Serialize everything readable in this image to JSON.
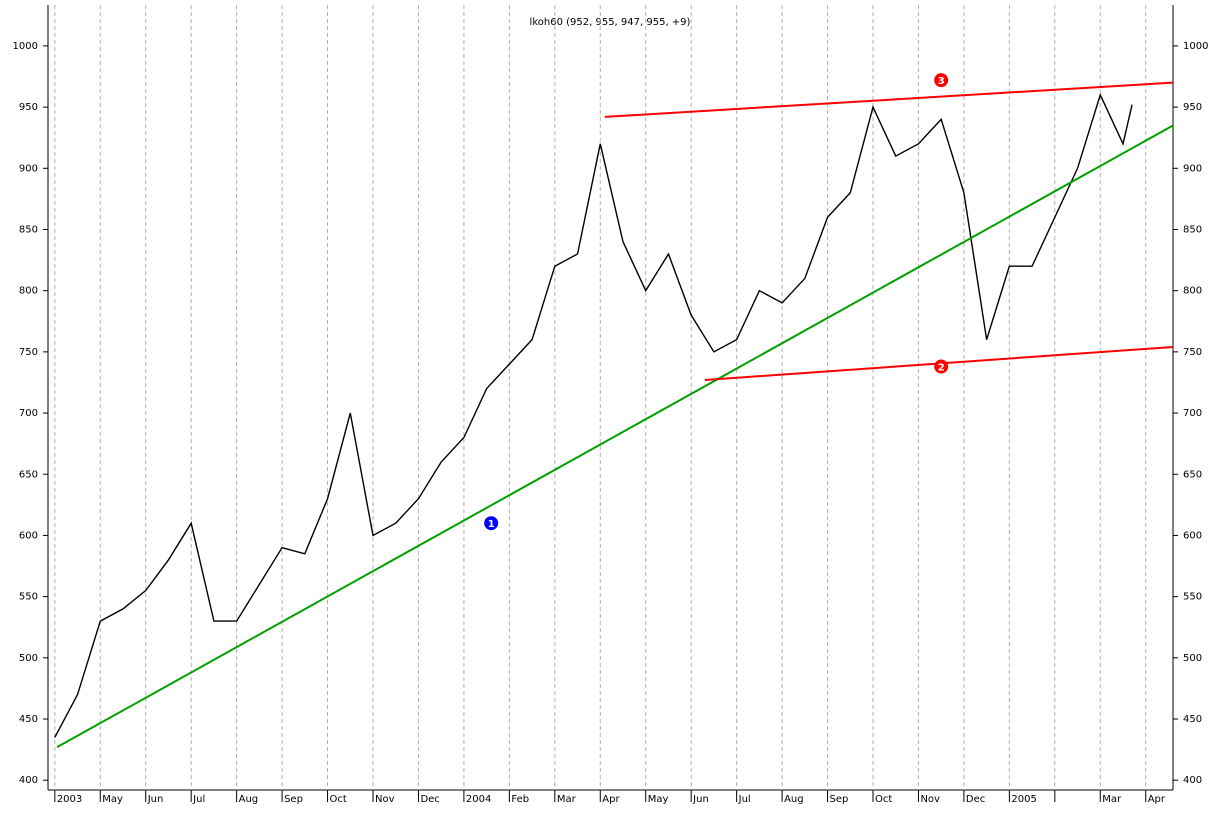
{
  "chart_data": {
    "type": "line",
    "title": "lkoh60 (952, 955, 947, 955, +9)",
    "x": [
      0,
      0.5,
      1,
      1.5,
      2,
      2.5,
      3,
      3.5,
      4,
      4.5,
      5,
      5.5,
      6,
      6.5,
      7,
      7.5,
      8,
      8.5,
      9,
      9.5,
      10,
      10.5,
      11,
      11.5,
      12,
      12.5,
      13,
      13.5,
      14,
      14.5,
      15,
      15.5,
      16,
      16.5,
      17,
      17.5,
      18,
      18.5,
      19,
      19.5,
      20,
      20.5,
      21,
      21.5,
      22,
      22.5,
      23,
      23.5,
      23.7
    ],
    "series": [
      {
        "color": "#000000",
        "values": [
          435,
          470,
          530,
          540,
          555,
          580,
          610,
          530,
          530,
          560,
          590,
          585,
          630,
          700,
          600,
          610,
          630,
          660,
          680,
          720,
          740,
          760,
          820,
          830,
          920,
          840,
          800,
          830,
          780,
          750,
          760,
          800,
          790,
          810,
          860,
          880,
          950,
          910,
          920,
          940,
          880,
          760,
          820,
          820,
          860,
          900,
          960,
          920,
          952
        ]
      }
    ],
    "lines": [
      {
        "color": "#00a000",
        "x": [
          0.05,
          24.6
        ],
        "y": [
          427,
          935
        ]
      },
      {
        "color": "#ff0000",
        "x": [
          12.1,
          24.6
        ],
        "y": [
          942,
          970
        ]
      },
      {
        "color": "#ff0000",
        "x": [
          14.3,
          24.6
        ],
        "y": [
          727,
          754
        ]
      }
    ],
    "markers": [
      {
        "label": "1",
        "color": "#0000ff",
        "x": 9.6,
        "y": 610
      },
      {
        "label": "2",
        "color": "#ff0000",
        "x": 19.5,
        "y": 738
      },
      {
        "label": "3",
        "color": "#ff0000",
        "x": 19.5,
        "y": 972
      }
    ],
    "xlim": [
      -0.15,
      24.6
    ],
    "xticks": [
      {
        "value": 0,
        "label": "2003"
      },
      {
        "value": 1,
        "label": "May"
      },
      {
        "value": 2,
        "label": "Jun"
      },
      {
        "value": 3,
        "label": "Jul"
      },
      {
        "value": 4,
        "label": "Aug"
      },
      {
        "value": 5,
        "label": "Sep"
      },
      {
        "value": 6,
        "label": "Oct"
      },
      {
        "value": 7,
        "label": "Nov"
      },
      {
        "value": 8,
        "label": "Dec"
      },
      {
        "value": 9,
        "label": "2004"
      },
      {
        "value": 10,
        "label": "Feb"
      },
      {
        "value": 11,
        "label": "Mar"
      },
      {
        "value": 12,
        "label": "Apr"
      },
      {
        "value": 13,
        "label": "May"
      },
      {
        "value": 14,
        "label": "Jun"
      },
      {
        "value": 15,
        "label": "Jul"
      },
      {
        "value": 16,
        "label": "Aug"
      },
      {
        "value": 17,
        "label": "Sep"
      },
      {
        "value": 18,
        "label": "Oct"
      },
      {
        "value": 19,
        "label": "Nov"
      },
      {
        "value": 20,
        "label": "Dec"
      },
      {
        "value": 21,
        "label": "2005"
      },
      {
        "value": 22,
        "label": null
      },
      {
        "value": 23,
        "label": "Mar"
      },
      {
        "value": 24,
        "label": "Apr"
      }
    ],
    "ylim": [
      392,
      1013
    ],
    "yticks": [
      400,
      450,
      500,
      550,
      600,
      650,
      700,
      750,
      800,
      850,
      900,
      950,
      1000
    ],
    "grid": true
  }
}
